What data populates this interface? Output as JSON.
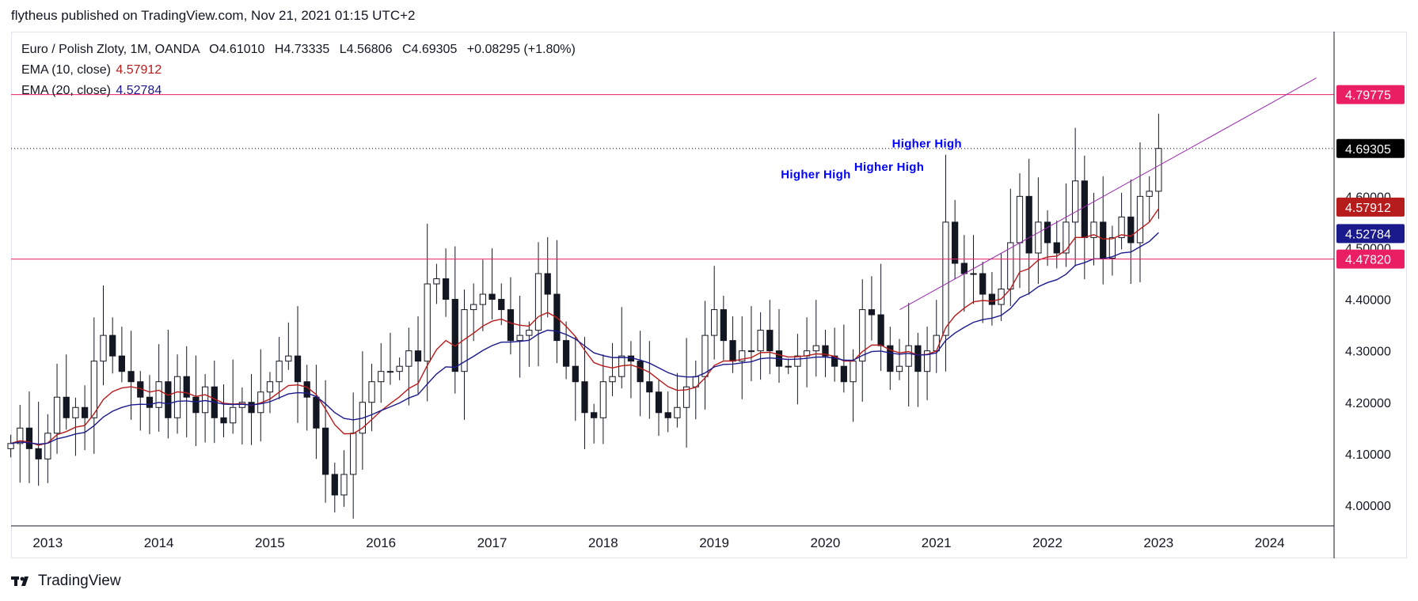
{
  "caption": "flytheus published on TradingView.com, Nov 21, 2021 01:15 UTC+2",
  "legend": {
    "symbol": "Euro / Polish Zloty, 1M, OANDA",
    "o_label": "O",
    "o_value": "4.61010",
    "h_label": "H",
    "h_value": "4.73335",
    "l_label": "L",
    "l_value": "4.56806",
    "c_label": "C",
    "c_value": "4.69305",
    "change": "+0.08295 (+1.80%)",
    "ema10_label": "EMA (10, close)",
    "ema10_value": "4.57912",
    "ema20_label": "EMA (20, close)",
    "ema20_value": "4.52784"
  },
  "footer": {
    "brand": "TradingView"
  },
  "colors": {
    "ema10": "#b71c1c",
    "ema20": "#1a1a8c",
    "hline": "#e91e63",
    "trend": "#9c27b0",
    "annot": "#0000ff",
    "price": "#131722"
  },
  "chart_data": {
    "type": "candlestick",
    "title": "Euro / Polish Zloty, 1M, OANDA",
    "y_range": [
      3.96,
      4.92
    ],
    "x_range": [
      2012.67,
      2024.58
    ],
    "y_ticks": [
      4.0,
      4.1,
      4.2,
      4.3,
      4.4,
      4.5,
      4.6
    ],
    "y_tick_labels": [
      "4.00000",
      "4.10000",
      "4.20000",
      "4.30000",
      "4.40000",
      "4.50000",
      "4.60000"
    ],
    "x_ticks": [
      2013,
      2014,
      2015,
      2016,
      2017,
      2018,
      2019,
      2020,
      2021,
      2022,
      2023,
      2024
    ],
    "x_tick_labels": [
      "2013",
      "2014",
      "2015",
      "2016",
      "2017",
      "2018",
      "2019",
      "2020",
      "2021",
      "2022",
      "2023",
      "2024"
    ],
    "start": 2012.667,
    "closes": [
      4.12,
      4.15,
      4.11,
      4.09,
      4.14,
      4.21,
      4.17,
      4.19,
      4.17,
      4.28,
      4.33,
      4.29,
      4.26,
      4.24,
      4.21,
      4.19,
      4.24,
      4.17,
      4.25,
      4.21,
      4.18,
      4.23,
      4.17,
      4.16,
      4.19,
      4.2,
      4.18,
      4.22,
      4.24,
      4.28,
      4.29,
      4.24,
      4.21,
      4.15,
      4.06,
      4.02,
      4.06,
      4.14,
      4.2,
      4.24,
      4.26,
      4.26,
      4.27,
      4.3,
      4.28,
      4.43,
      4.44,
      4.4,
      4.26,
      4.38,
      4.39,
      4.41,
      4.4,
      4.38,
      4.32,
      4.33,
      4.34,
      4.45,
      4.41,
      4.32,
      4.27,
      4.24,
      4.18,
      4.17,
      4.24,
      4.25,
      4.29,
      4.28,
      4.24,
      4.22,
      4.18,
      4.17,
      4.19,
      4.23,
      4.25,
      4.33,
      4.38,
      4.32,
      4.28,
      4.3,
      4.3,
      4.34,
      4.3,
      4.27,
      4.27,
      4.29,
      4.3,
      4.31,
      4.29,
      4.27,
      4.24,
      4.28,
      4.38,
      4.37,
      4.31,
      4.26,
      4.27,
      4.31,
      4.26,
      4.3,
      4.33,
      4.55,
      4.47,
      4.45,
      4.45,
      4.41,
      4.39,
      4.42,
      4.51,
      4.6,
      4.49,
      4.55,
      4.51,
      4.49,
      4.55,
      4.63,
      4.52,
      4.55,
      4.48,
      4.52,
      4.56,
      4.51,
      4.6,
      4.61,
      4.69305
    ],
    "ema10_last": 4.57912,
    "ema20_last": 4.52784,
    "horizontal_levels": [
      {
        "label": "4.79775",
        "value": 4.79775
      },
      {
        "label": "4.47820",
        "value": 4.4782
      }
    ],
    "last_price": {
      "label": "4.69305",
      "value": 4.69305
    },
    "ema_tags": [
      {
        "label": "4.57912",
        "value": 4.57912
      },
      {
        "label": "4.52784",
        "value": 4.52784
      }
    ],
    "trendline": {
      "from": [
        2020.67,
        4.38
      ],
      "to": [
        2024.42,
        4.83
      ]
    },
    "annotations": [
      {
        "text": "Higher High",
        "x": 2019.6,
        "y": 4.635
      },
      {
        "text": "Higher High",
        "x": 2020.26,
        "y": 4.65
      },
      {
        "text": "Higher High",
        "x": 2020.6,
        "y": 4.695
      }
    ]
  }
}
